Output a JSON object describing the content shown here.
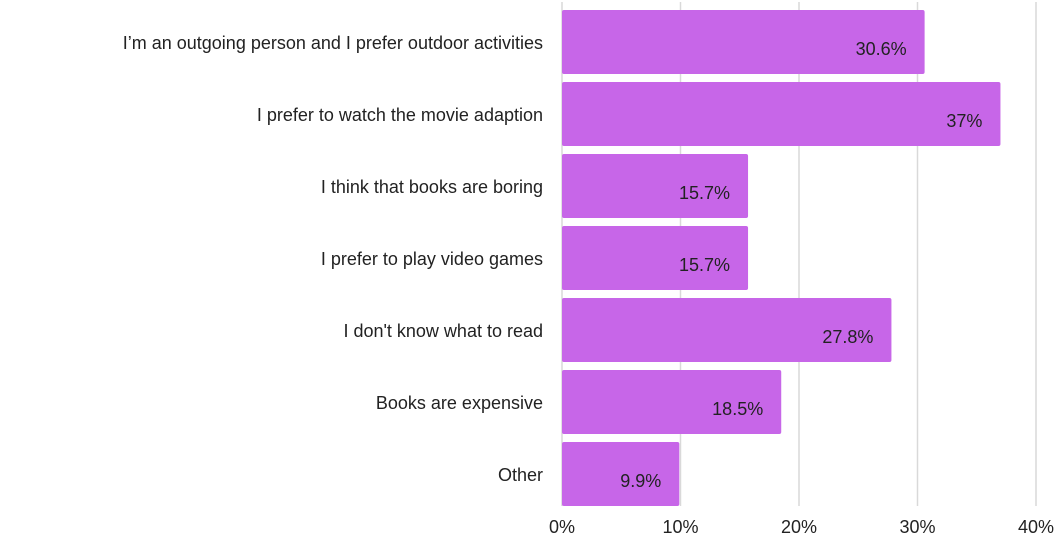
{
  "chart_data": {
    "type": "bar",
    "orientation": "horizontal",
    "categories": [
      "I’m an outgoing person and I prefer outdoor activities",
      "I prefer to watch the movie adaption",
      "I think that books are boring",
      "I prefer to play video games",
      "I don't know what to read",
      "Books are expensive",
      "Other"
    ],
    "values": [
      30.6,
      37,
      15.7,
      15.7,
      27.8,
      18.5,
      9.9
    ],
    "value_labels": [
      "30.6%",
      "37%",
      "15.7%",
      "15.7%",
      "27.8%",
      "18.5%",
      "9.9%"
    ],
    "color": "#c766e8",
    "xlim": [
      0,
      40
    ],
    "xticks": [
      {
        "value": 0,
        "label": "0%"
      },
      {
        "value": 10,
        "label": "10%"
      },
      {
        "value": 20,
        "label": "20%"
      },
      {
        "value": 30,
        "label": "30%"
      },
      {
        "value": 40,
        "label": "40%"
      }
    ],
    "grid": true
  }
}
